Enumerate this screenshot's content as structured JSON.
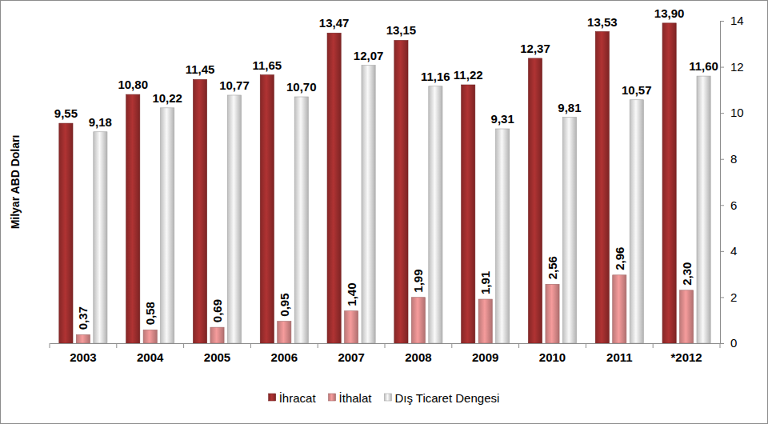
{
  "chart_data": {
    "type": "bar",
    "y_label": "Milyar ABD Doları",
    "categories": [
      "2003",
      "2004",
      "2005",
      "2006",
      "2007",
      "2008",
      "2009",
      "2010",
      "2011",
      "*2012"
    ],
    "series": [
      {
        "name": "İhracat",
        "color": "#9b2d2d",
        "values": [
          9.55,
          10.8,
          11.45,
          11.65,
          13.47,
          13.15,
          11.22,
          12.37,
          13.53,
          13.9
        ],
        "value_labels": [
          "9,55",
          "10,80",
          "11,45",
          "11,65",
          "13,47",
          "13,15",
          "11,22",
          "12,37",
          "13,53",
          "13,90"
        ]
      },
      {
        "name": "İthalat",
        "color": "#d98a8a",
        "values": [
          0.37,
          0.58,
          0.69,
          0.95,
          1.4,
          1.99,
          1.91,
          2.56,
          2.96,
          2.3
        ],
        "value_labels": [
          "0,37",
          "0,58",
          "0,69",
          "0,95",
          "1,40",
          "1,99",
          "1,91",
          "2,56",
          "2,96",
          "2,30"
        ]
      },
      {
        "name": "Dış Ticaret Dengesi",
        "color": "#dcdcdc",
        "values": [
          9.18,
          10.22,
          10.77,
          10.7,
          12.07,
          11.16,
          9.31,
          9.81,
          10.57,
          11.6
        ],
        "value_labels": [
          "9,18",
          "10,22",
          "10,77",
          "10,70",
          "12,07",
          "11,16",
          "9,31",
          "9,81",
          "10,57",
          "11,60"
        ]
      }
    ],
    "ylim": [
      0,
      14
    ],
    "yticks": [
      0,
      2,
      4,
      6,
      8,
      10,
      12,
      14
    ],
    "grid": false,
    "data_labels": true,
    "legend": "bottom"
  }
}
